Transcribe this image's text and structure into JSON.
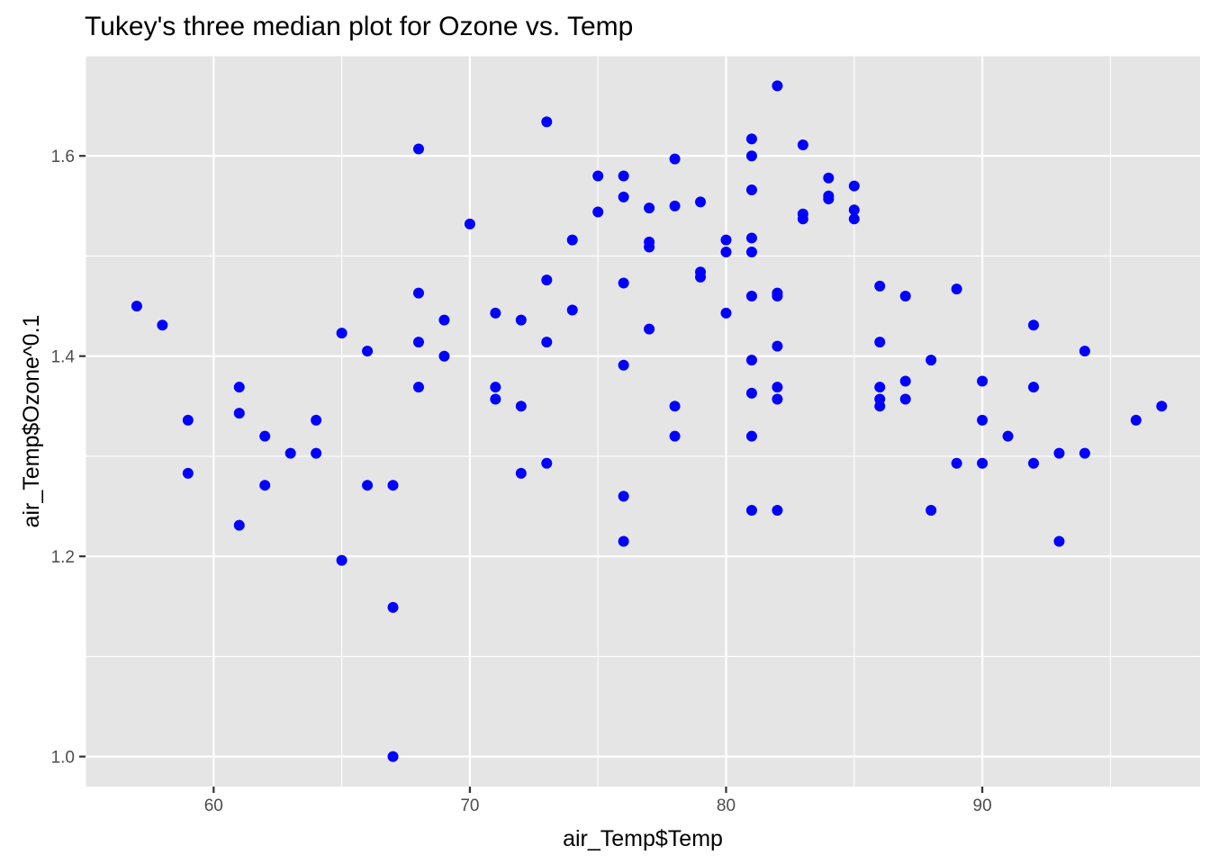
{
  "chart_data": {
    "type": "scatter",
    "title": "Tukey's three median plot for Ozone vs. Temp",
    "xlabel": "air_Temp$Temp",
    "ylabel": "air_Temp$Ozone^0.1",
    "xlim": [
      55,
      98.5
    ],
    "ylim": [
      0.97,
      1.7
    ],
    "x_ticks": [
      60,
      70,
      80,
      90
    ],
    "x_tick_labels": [
      "60",
      "70",
      "80",
      "90"
    ],
    "y_ticks": [
      1.0,
      1.2,
      1.4,
      1.6
    ],
    "y_tick_labels": [
      "1.0",
      "1.2",
      "1.4",
      "1.6"
    ],
    "grid": true,
    "colors": {
      "points": "#0000ff",
      "panel": "#e5e5e5",
      "grid": "#ffffff"
    },
    "points": [
      [
        57,
        1.45
      ],
      [
        58,
        1.431
      ],
      [
        59,
        1.336
      ],
      [
        59,
        1.283
      ],
      [
        61,
        1.369
      ],
      [
        61,
        1.343
      ],
      [
        61,
        1.231
      ],
      [
        62,
        1.32
      ],
      [
        62,
        1.271
      ],
      [
        63,
        1.303
      ],
      [
        64,
        1.336
      ],
      [
        64,
        1.303
      ],
      [
        65,
        1.423
      ],
      [
        65,
        1.196
      ],
      [
        66,
        1.405
      ],
      [
        66,
        1.271
      ],
      [
        67,
        1.271
      ],
      [
        67,
        1.149
      ],
      [
        67,
        1.0
      ],
      [
        68,
        1.607
      ],
      [
        68,
        1.463
      ],
      [
        68,
        1.414
      ],
      [
        68,
        1.369
      ],
      [
        69,
        1.436
      ],
      [
        69,
        1.4
      ],
      [
        70,
        1.532
      ],
      [
        71,
        1.443
      ],
      [
        71,
        1.369
      ],
      [
        71,
        1.357
      ],
      [
        72,
        1.436
      ],
      [
        72,
        1.35
      ],
      [
        72,
        1.283
      ],
      [
        73,
        1.634
      ],
      [
        73,
        1.476
      ],
      [
        73,
        1.414
      ],
      [
        73,
        1.293
      ],
      [
        74,
        1.516
      ],
      [
        74,
        1.446
      ],
      [
        75,
        1.58
      ],
      [
        75,
        1.544
      ],
      [
        76,
        1.58
      ],
      [
        76,
        1.559
      ],
      [
        76,
        1.473
      ],
      [
        76,
        1.391
      ],
      [
        76,
        1.26
      ],
      [
        76,
        1.215
      ],
      [
        77,
        1.548
      ],
      [
        77,
        1.514
      ],
      [
        77,
        1.509
      ],
      [
        77,
        1.427
      ],
      [
        78,
        1.597
      ],
      [
        78,
        1.55
      ],
      [
        78,
        1.35
      ],
      [
        78,
        1.32
      ],
      [
        79,
        1.554
      ],
      [
        79,
        1.484
      ],
      [
        79,
        1.479
      ],
      [
        80,
        1.516
      ],
      [
        80,
        1.504
      ],
      [
        80,
        1.443
      ],
      [
        81,
        1.617
      ],
      [
        81,
        1.6
      ],
      [
        81,
        1.566
      ],
      [
        81,
        1.518
      ],
      [
        81,
        1.504
      ],
      [
        81,
        1.46
      ],
      [
        81,
        1.396
      ],
      [
        81,
        1.363
      ],
      [
        81,
        1.32
      ],
      [
        81,
        1.246
      ],
      [
        82,
        1.67
      ],
      [
        82,
        1.463
      ],
      [
        82,
        1.46
      ],
      [
        82,
        1.41
      ],
      [
        82,
        1.369
      ],
      [
        82,
        1.357
      ],
      [
        82,
        1.246
      ],
      [
        83,
        1.611
      ],
      [
        83,
        1.542
      ],
      [
        83,
        1.537
      ],
      [
        84,
        1.578
      ],
      [
        84,
        1.56
      ],
      [
        84,
        1.557
      ],
      [
        85,
        1.57
      ],
      [
        85,
        1.546
      ],
      [
        85,
        1.537
      ],
      [
        86,
        1.47
      ],
      [
        86,
        1.414
      ],
      [
        86,
        1.369
      ],
      [
        86,
        1.357
      ],
      [
        86,
        1.35
      ],
      [
        87,
        1.46
      ],
      [
        87,
        1.375
      ],
      [
        87,
        1.357
      ],
      [
        88,
        1.396
      ],
      [
        88,
        1.246
      ],
      [
        89,
        1.467
      ],
      [
        89,
        1.293
      ],
      [
        90,
        1.375
      ],
      [
        90,
        1.336
      ],
      [
        90,
        1.293
      ],
      [
        91,
        1.32
      ],
      [
        92,
        1.431
      ],
      [
        92,
        1.369
      ],
      [
        92,
        1.293
      ],
      [
        93,
        1.303
      ],
      [
        93,
        1.215
      ],
      [
        94,
        1.405
      ],
      [
        94,
        1.303
      ],
      [
        96,
        1.336
      ],
      [
        97,
        1.35
      ]
    ]
  }
}
